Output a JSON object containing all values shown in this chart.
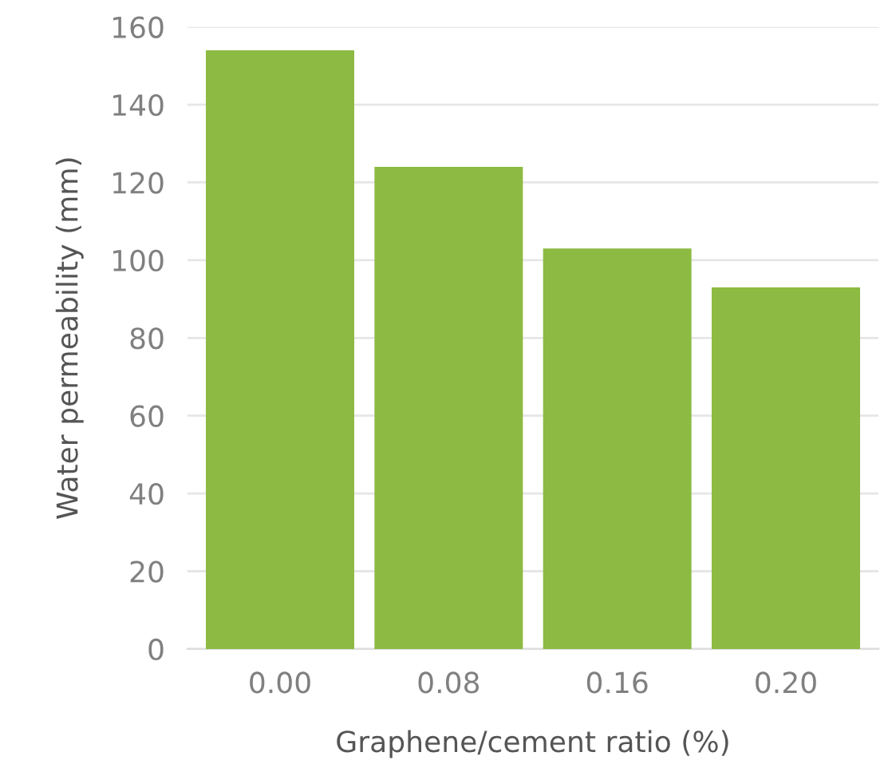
{
  "chart_data": {
    "type": "bar",
    "xlabel": "Graphene/cement ratio (%)",
    "ylabel": "Water permeability (mm)",
    "categories": [
      "0.00",
      "0.08",
      "0.16",
      "0.20"
    ],
    "values": [
      154,
      124,
      103,
      93
    ],
    "color": "#8dba42",
    "ylim": [
      0,
      160
    ],
    "yticks": [
      0,
      20,
      40,
      60,
      80,
      100,
      120,
      140,
      160
    ],
    "grid": "y"
  }
}
